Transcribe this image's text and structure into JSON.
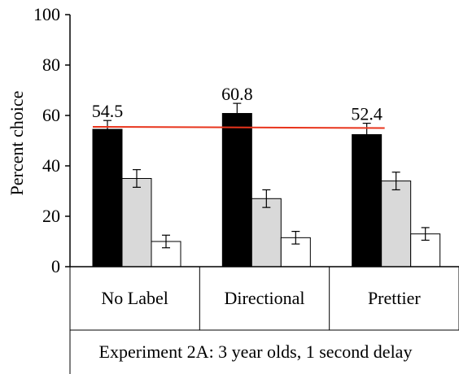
{
  "chart_data": {
    "type": "bar",
    "ylabel": "Percent choice",
    "footer": "Experiment 2A: 3 year olds, 1 second delay",
    "ylim": [
      0,
      100
    ],
    "yticks": [
      0,
      20,
      40,
      60,
      80,
      100
    ],
    "grid": false,
    "categories": [
      "No Label",
      "Directional",
      "Prettier"
    ],
    "series": [
      {
        "color": "#000000",
        "values": [
          54.5,
          60.8,
          52.4
        ],
        "errors": [
          3.5,
          4.0,
          4.5
        ]
      },
      {
        "color": "#d9d9d9",
        "values": [
          35,
          27,
          34
        ],
        "errors": [
          3.5,
          3.5,
          3.5
        ]
      },
      {
        "color": "#ffffff",
        "values": [
          10,
          11.5,
          13
        ],
        "errors": [
          2.5,
          2.5,
          2.5
        ]
      }
    ],
    "data_labels": [
      "54.5",
      "60.8",
      "52.4"
    ],
    "reference_line": {
      "y": 55.5,
      "y_end": 55,
      "color": "#e8341c"
    }
  }
}
